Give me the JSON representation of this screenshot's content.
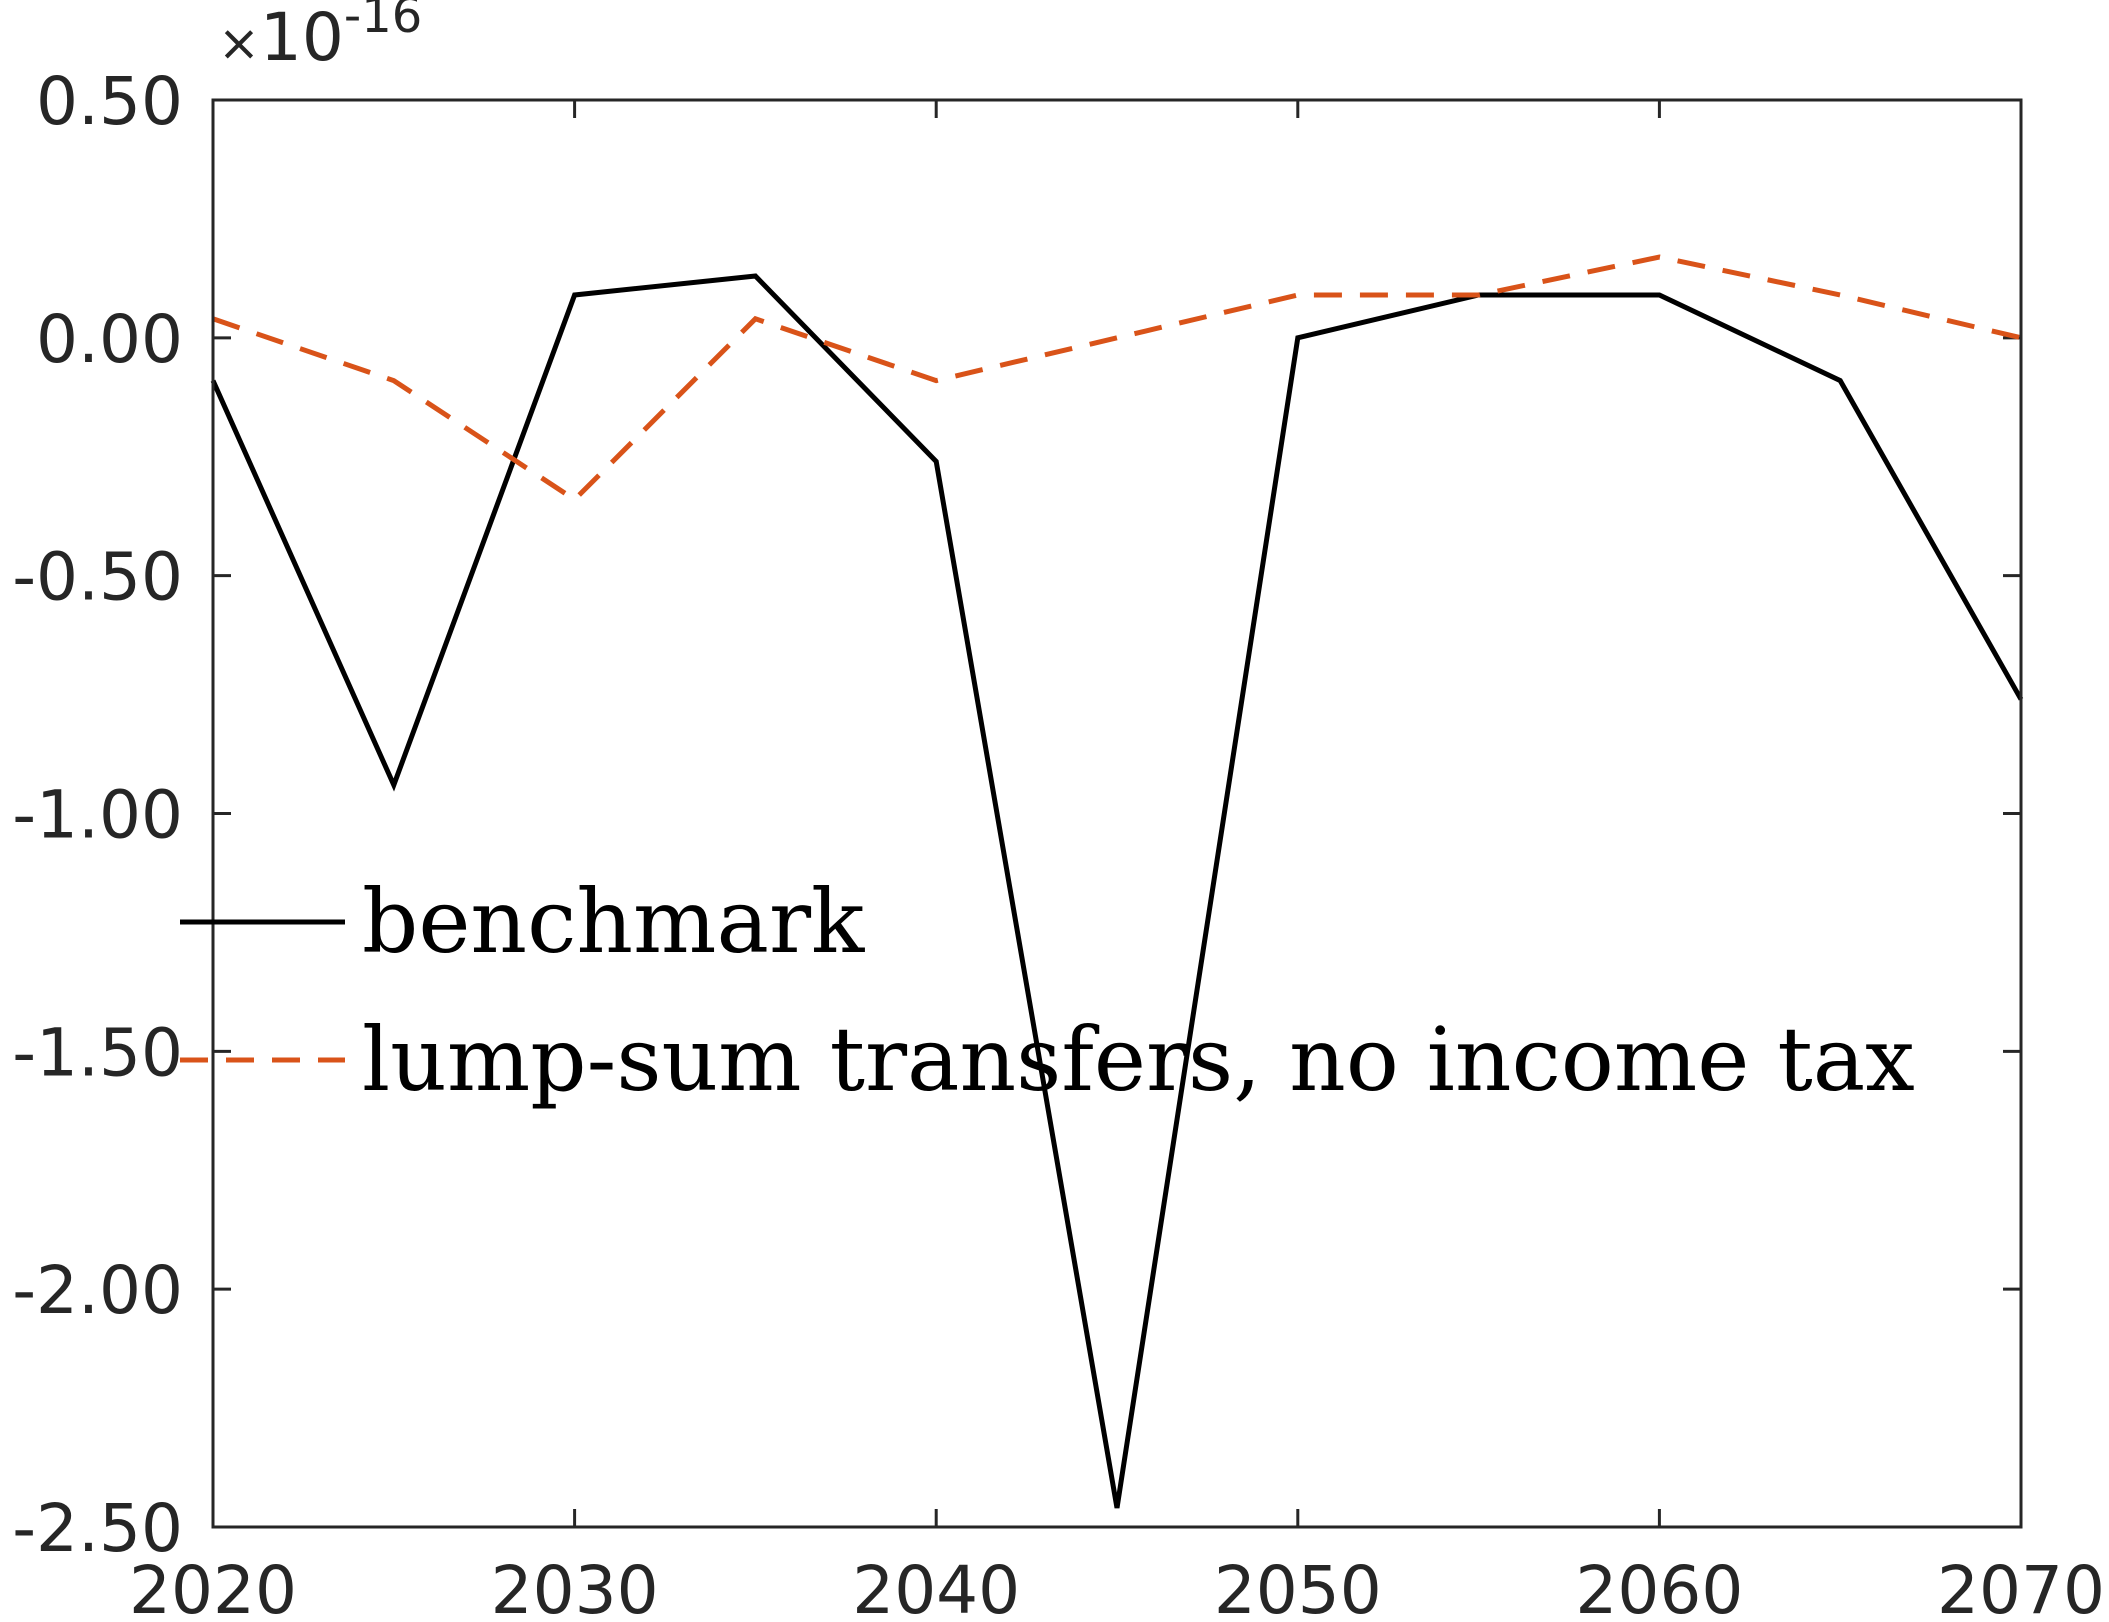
{
  "chart_data": {
    "type": "line",
    "title": "",
    "xlabel": "",
    "ylabel": "",
    "y_exponent": {
      "base": "10",
      "power": "-16"
    },
    "xlim": [
      2020,
      2070
    ],
    "ylim": [
      -2.5,
      0.5
    ],
    "x_ticks": [
      2020,
      2030,
      2040,
      2050,
      2060,
      2070
    ],
    "x_tick_labels": [
      "2020",
      "2030",
      "2040",
      "2050",
      "2060",
      "2070"
    ],
    "y_ticks": [
      0.5,
      0.0,
      -0.5,
      -1.0,
      -1.5,
      -2.0,
      -2.5
    ],
    "y_tick_labels": [
      "0.50",
      "0.00",
      "-0.50",
      "-1.00",
      "-1.50",
      "-2.00",
      "-2.50"
    ],
    "x": [
      2020,
      2025,
      2030,
      2035,
      2040,
      2045,
      2050,
      2055,
      2060,
      2065,
      2070
    ],
    "series": [
      {
        "name": "benchmark",
        "color": "#000000",
        "style": "solid",
        "values": [
          -0.09,
          -0.94,
          0.09,
          0.13,
          -0.26,
          -2.46,
          0.0,
          0.09,
          0.09,
          -0.09,
          -0.76
        ]
      },
      {
        "name": "lump-sum transfers, no income tax",
        "color": "#D95319",
        "style": "dashed",
        "values": [
          0.04,
          -0.09,
          -0.34,
          0.04,
          -0.09,
          0.0,
          0.09,
          0.09,
          0.17,
          0.09,
          0.0
        ]
      }
    ],
    "grid": false,
    "legend_position": "center-left"
  }
}
